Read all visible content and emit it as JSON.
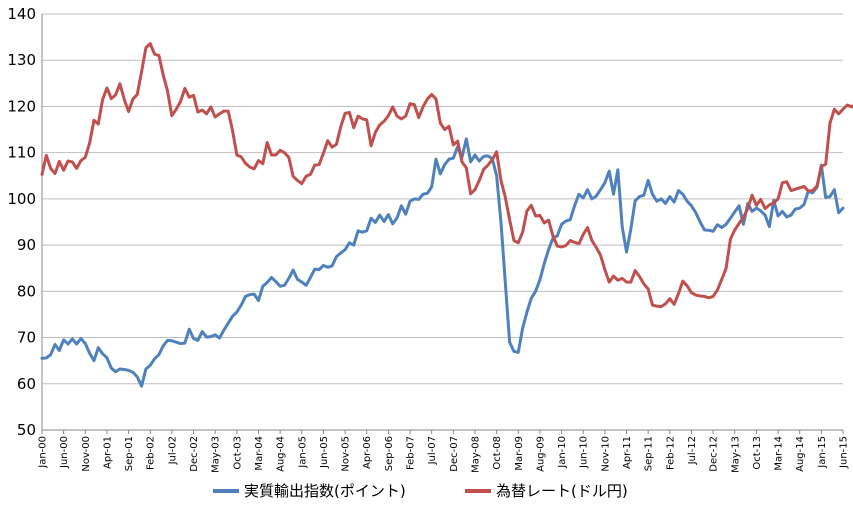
{
  "chart_data": {
    "type": "line",
    "title": "",
    "xlabel": "",
    "ylabel": "",
    "ylim": [
      50,
      140
    ],
    "y_ticks": [
      50,
      60,
      70,
      80,
      90,
      100,
      110,
      120,
      130,
      140
    ],
    "grid": "horizontal",
    "legend_position": "bottom",
    "x_start": "Jan-00",
    "x_ticks": [
      "Jan-00",
      "Jun-00",
      "Nov-00",
      "Apr-01",
      "Sep-01",
      "Feb-02",
      "Jul-02",
      "Dec-02",
      "May-03",
      "Oct-03",
      "Mar-04",
      "Aug-04",
      "Jan-05",
      "Jun-05",
      "Nov-05",
      "Apr-06",
      "Sep-06",
      "Feb-07",
      "Jul-07",
      "Dec-07",
      "May-08",
      "Oct-08",
      "Mar-09",
      "Aug-09",
      "Jan-10",
      "Jun-10",
      "Nov-10",
      "Apr-11",
      "Sep-11",
      "Feb-12",
      "Jul-12",
      "Dec-12",
      "May-13",
      "Oct-13",
      "Mar-14",
      "Aug-14",
      "Jan-15",
      "Jun-15"
    ],
    "series": [
      {
        "name": "実質輸出指数(ポイント)",
        "color": "#4F81BD",
        "values": [
          65.5,
          65.6,
          66.3,
          68.5,
          67.2,
          69.5,
          68.6,
          69.7,
          68.6,
          69.8,
          68.7,
          66.6,
          65.0,
          67.8,
          66.5,
          65.6,
          63.4,
          62.6,
          63.2,
          63.1,
          62.9,
          62.5,
          61.5,
          59.5,
          63.2,
          64.0,
          65.4,
          66.3,
          68.2,
          69.4,
          69.3,
          69.0,
          68.7,
          68.8,
          71.8,
          69.8,
          69.4,
          71.3,
          70.1,
          70.2,
          70.6,
          69.9,
          71.6,
          73.1,
          74.6,
          75.5,
          77.0,
          78.9,
          79.3,
          79.4,
          78.0,
          81.1,
          81.9,
          83.0,
          82.1,
          81.1,
          81.3,
          82.8,
          84.6,
          82.6,
          82.0,
          81.3,
          83.0,
          84.8,
          84.7,
          85.6,
          85.2,
          85.5,
          87.5,
          88.3,
          89.0,
          90.5,
          90.0,
          93.1,
          92.8,
          93.1,
          95.8,
          94.9,
          96.5,
          95.1,
          96.6,
          94.6,
          95.9,
          98.5,
          96.7,
          99.5,
          100.0,
          99.9,
          101.0,
          101.2,
          102.6,
          108.6,
          105.4,
          107.4,
          108.6,
          108.8,
          111.3,
          109.0,
          113.0,
          108.0,
          109.5,
          108.2,
          109.2,
          109.3,
          108.7,
          105.0,
          95.0,
          82.0,
          69.0,
          67.0,
          66.8,
          72.0,
          75.5,
          78.5,
          80.0,
          82.5,
          86.0,
          89.0,
          91.5,
          92.0,
          94.5,
          95.2,
          95.5,
          98.5,
          101.0,
          100.2,
          102.0,
          100.0,
          100.6,
          102.0,
          103.5,
          106.0,
          101.0,
          106.3,
          94.0,
          88.5,
          93.5,
          99.6,
          100.5,
          100.8,
          104.0,
          101.0,
          99.5,
          100.0,
          99.0,
          100.5,
          99.3,
          101.8,
          101.0,
          99.5,
          98.5,
          97.0,
          95.0,
          93.3,
          93.2,
          93.0,
          94.4,
          93.8,
          94.5,
          95.8,
          97.2,
          98.5,
          94.5,
          99.0,
          97.3,
          98.0,
          97.4,
          96.5,
          94.0,
          99.7,
          96.3,
          97.3,
          96.1,
          96.5,
          97.8,
          98.0,
          98.8,
          101.7,
          101.3,
          102.5,
          107.3,
          100.3,
          100.5,
          102.0,
          97.0,
          98.0
        ]
      },
      {
        "name": "為替レート(ドル円)",
        "color": "#C0504D",
        "values": [
          105.3,
          109.4,
          106.6,
          105.5,
          108.1,
          106.2,
          108.2,
          108.0,
          106.6,
          108.3,
          109.0,
          112.1,
          117.0,
          116.2,
          121.5,
          124.0,
          121.7,
          122.5,
          124.9,
          121.5,
          118.9,
          121.6,
          122.6,
          127.5,
          132.7,
          133.6,
          131.3,
          131.0,
          126.8,
          123.3,
          118.0,
          119.4,
          121.1,
          123.9,
          122.0,
          122.4,
          118.8,
          119.2,
          118.4,
          119.9,
          117.7,
          118.4,
          119.0,
          119.0,
          114.8,
          109.5,
          109.1,
          107.7,
          106.9,
          106.5,
          108.3,
          107.6,
          112.2,
          109.5,
          109.5,
          110.5,
          110.0,
          109.0,
          104.9,
          104.0,
          103.3,
          104.9,
          105.3,
          107.3,
          107.4,
          109.9,
          112.6,
          111.2,
          111.8,
          115.6,
          118.5,
          118.7,
          115.4,
          117.9,
          117.3,
          117.1,
          111.5,
          114.4,
          116.0,
          116.8,
          118.0,
          119.9,
          117.9,
          117.3,
          117.9,
          120.6,
          120.4,
          117.6,
          119.9,
          121.6,
          122.6,
          121.6,
          116.4,
          115.0,
          115.7,
          111.7,
          112.5,
          108.0,
          106.7,
          101.1,
          102.0,
          104.0,
          106.4,
          107.3,
          108.5,
          110.2,
          104.0,
          100.4,
          95.5,
          91.0,
          90.5,
          92.8,
          97.4,
          98.6,
          96.3,
          96.4,
          94.8,
          95.4,
          92.0,
          89.8,
          89.6,
          89.9,
          91.0,
          90.6,
          90.3,
          92.3,
          93.8,
          91.0,
          89.5,
          87.8,
          84.7,
          82.0,
          83.3,
          82.4,
          82.8,
          82.0,
          82.0,
          84.5,
          83.2,
          81.6,
          80.5,
          77.0,
          76.8,
          76.7,
          77.3,
          78.4,
          77.2,
          79.5,
          82.2,
          81.2,
          79.7,
          79.2,
          79.0,
          78.9,
          78.6,
          78.9,
          80.3,
          82.6,
          85.0,
          91.3,
          93.3,
          94.7,
          96.0,
          97.9,
          100.8,
          98.6,
          99.9,
          97.9,
          98.7,
          99.1,
          100.0,
          103.5,
          103.7,
          101.8,
          102.1,
          102.4,
          102.7,
          101.7,
          101.8,
          102.8,
          107.0,
          107.5,
          116.4,
          119.4,
          118.4,
          119.4,
          120.3,
          119.9,
          120.6,
          123.7
        ]
      }
    ]
  }
}
